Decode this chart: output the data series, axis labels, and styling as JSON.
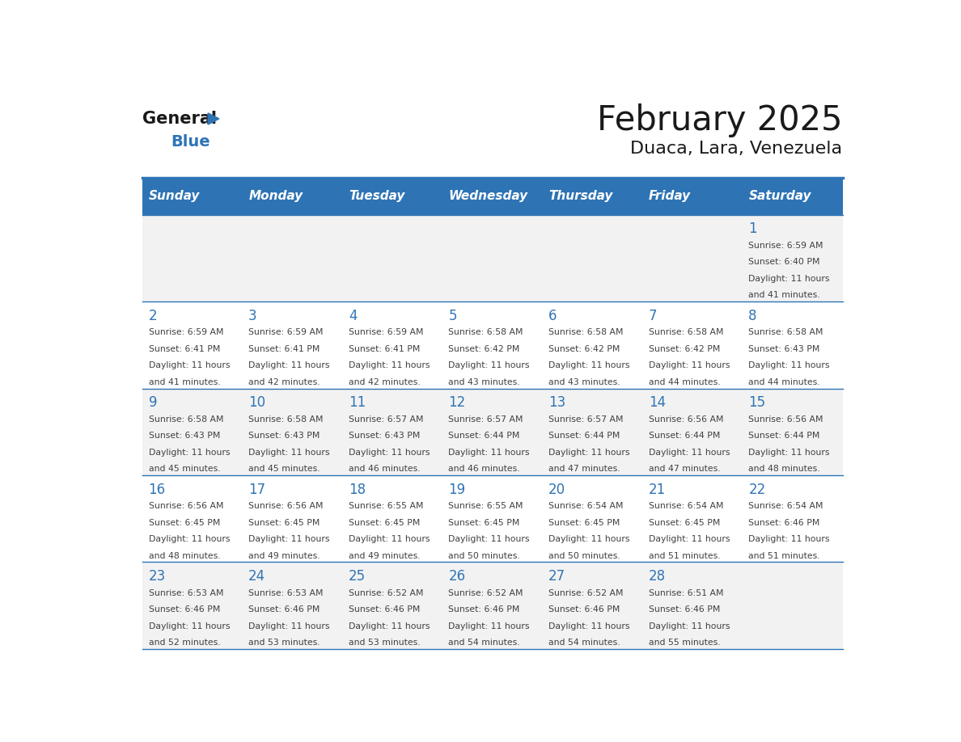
{
  "title": "February 2025",
  "subtitle": "Duaca, Lara, Venezuela",
  "days_of_week": [
    "Sunday",
    "Monday",
    "Tuesday",
    "Wednesday",
    "Thursday",
    "Friday",
    "Saturday"
  ],
  "header_bg": "#2E74B5",
  "header_text": "#FFFFFF",
  "row_bg_light": "#F2F2F2",
  "row_bg_white": "#FFFFFF",
  "separator_color": "#2E74B5",
  "day_number_color": "#2E74B5",
  "cell_text_color": "#404040",
  "title_color": "#1A1A1A",
  "subtitle_color": "#1A1A1A",
  "calendar_data": [
    [
      {
        "day": null,
        "sunrise": null,
        "sunset": null,
        "daylight": null
      },
      {
        "day": null,
        "sunrise": null,
        "sunset": null,
        "daylight": null
      },
      {
        "day": null,
        "sunrise": null,
        "sunset": null,
        "daylight": null
      },
      {
        "day": null,
        "sunrise": null,
        "sunset": null,
        "daylight": null
      },
      {
        "day": null,
        "sunrise": null,
        "sunset": null,
        "daylight": null
      },
      {
        "day": null,
        "sunrise": null,
        "sunset": null,
        "daylight": null
      },
      {
        "day": 1,
        "sunrise": "6:59 AM",
        "sunset": "6:40 PM",
        "daylight": "11 hours and 41 minutes."
      }
    ],
    [
      {
        "day": 2,
        "sunrise": "6:59 AM",
        "sunset": "6:41 PM",
        "daylight": "11 hours and 41 minutes."
      },
      {
        "day": 3,
        "sunrise": "6:59 AM",
        "sunset": "6:41 PM",
        "daylight": "11 hours and 42 minutes."
      },
      {
        "day": 4,
        "sunrise": "6:59 AM",
        "sunset": "6:41 PM",
        "daylight": "11 hours and 42 minutes."
      },
      {
        "day": 5,
        "sunrise": "6:58 AM",
        "sunset": "6:42 PM",
        "daylight": "11 hours and 43 minutes."
      },
      {
        "day": 6,
        "sunrise": "6:58 AM",
        "sunset": "6:42 PM",
        "daylight": "11 hours and 43 minutes."
      },
      {
        "day": 7,
        "sunrise": "6:58 AM",
        "sunset": "6:42 PM",
        "daylight": "11 hours and 44 minutes."
      },
      {
        "day": 8,
        "sunrise": "6:58 AM",
        "sunset": "6:43 PM",
        "daylight": "11 hours and 44 minutes."
      }
    ],
    [
      {
        "day": 9,
        "sunrise": "6:58 AM",
        "sunset": "6:43 PM",
        "daylight": "11 hours and 45 minutes."
      },
      {
        "day": 10,
        "sunrise": "6:58 AM",
        "sunset": "6:43 PM",
        "daylight": "11 hours and 45 minutes."
      },
      {
        "day": 11,
        "sunrise": "6:57 AM",
        "sunset": "6:43 PM",
        "daylight": "11 hours and 46 minutes."
      },
      {
        "day": 12,
        "sunrise": "6:57 AM",
        "sunset": "6:44 PM",
        "daylight": "11 hours and 46 minutes."
      },
      {
        "day": 13,
        "sunrise": "6:57 AM",
        "sunset": "6:44 PM",
        "daylight": "11 hours and 47 minutes."
      },
      {
        "day": 14,
        "sunrise": "6:56 AM",
        "sunset": "6:44 PM",
        "daylight": "11 hours and 47 minutes."
      },
      {
        "day": 15,
        "sunrise": "6:56 AM",
        "sunset": "6:44 PM",
        "daylight": "11 hours and 48 minutes."
      }
    ],
    [
      {
        "day": 16,
        "sunrise": "6:56 AM",
        "sunset": "6:45 PM",
        "daylight": "11 hours and 48 minutes."
      },
      {
        "day": 17,
        "sunrise": "6:56 AM",
        "sunset": "6:45 PM",
        "daylight": "11 hours and 49 minutes."
      },
      {
        "day": 18,
        "sunrise": "6:55 AM",
        "sunset": "6:45 PM",
        "daylight": "11 hours and 49 minutes."
      },
      {
        "day": 19,
        "sunrise": "6:55 AM",
        "sunset": "6:45 PM",
        "daylight": "11 hours and 50 minutes."
      },
      {
        "day": 20,
        "sunrise": "6:54 AM",
        "sunset": "6:45 PM",
        "daylight": "11 hours and 50 minutes."
      },
      {
        "day": 21,
        "sunrise": "6:54 AM",
        "sunset": "6:45 PM",
        "daylight": "11 hours and 51 minutes."
      },
      {
        "day": 22,
        "sunrise": "6:54 AM",
        "sunset": "6:46 PM",
        "daylight": "11 hours and 51 minutes."
      }
    ],
    [
      {
        "day": 23,
        "sunrise": "6:53 AM",
        "sunset": "6:46 PM",
        "daylight": "11 hours and 52 minutes."
      },
      {
        "day": 24,
        "sunrise": "6:53 AM",
        "sunset": "6:46 PM",
        "daylight": "11 hours and 53 minutes."
      },
      {
        "day": 25,
        "sunrise": "6:52 AM",
        "sunset": "6:46 PM",
        "daylight": "11 hours and 53 minutes."
      },
      {
        "day": 26,
        "sunrise": "6:52 AM",
        "sunset": "6:46 PM",
        "daylight": "11 hours and 54 minutes."
      },
      {
        "day": 27,
        "sunrise": "6:52 AM",
        "sunset": "6:46 PM",
        "daylight": "11 hours and 54 minutes."
      },
      {
        "day": 28,
        "sunrise": "6:51 AM",
        "sunset": "6:46 PM",
        "daylight": "11 hours and 55 minutes."
      },
      {
        "day": null,
        "sunrise": null,
        "sunset": null,
        "daylight": null
      }
    ]
  ]
}
